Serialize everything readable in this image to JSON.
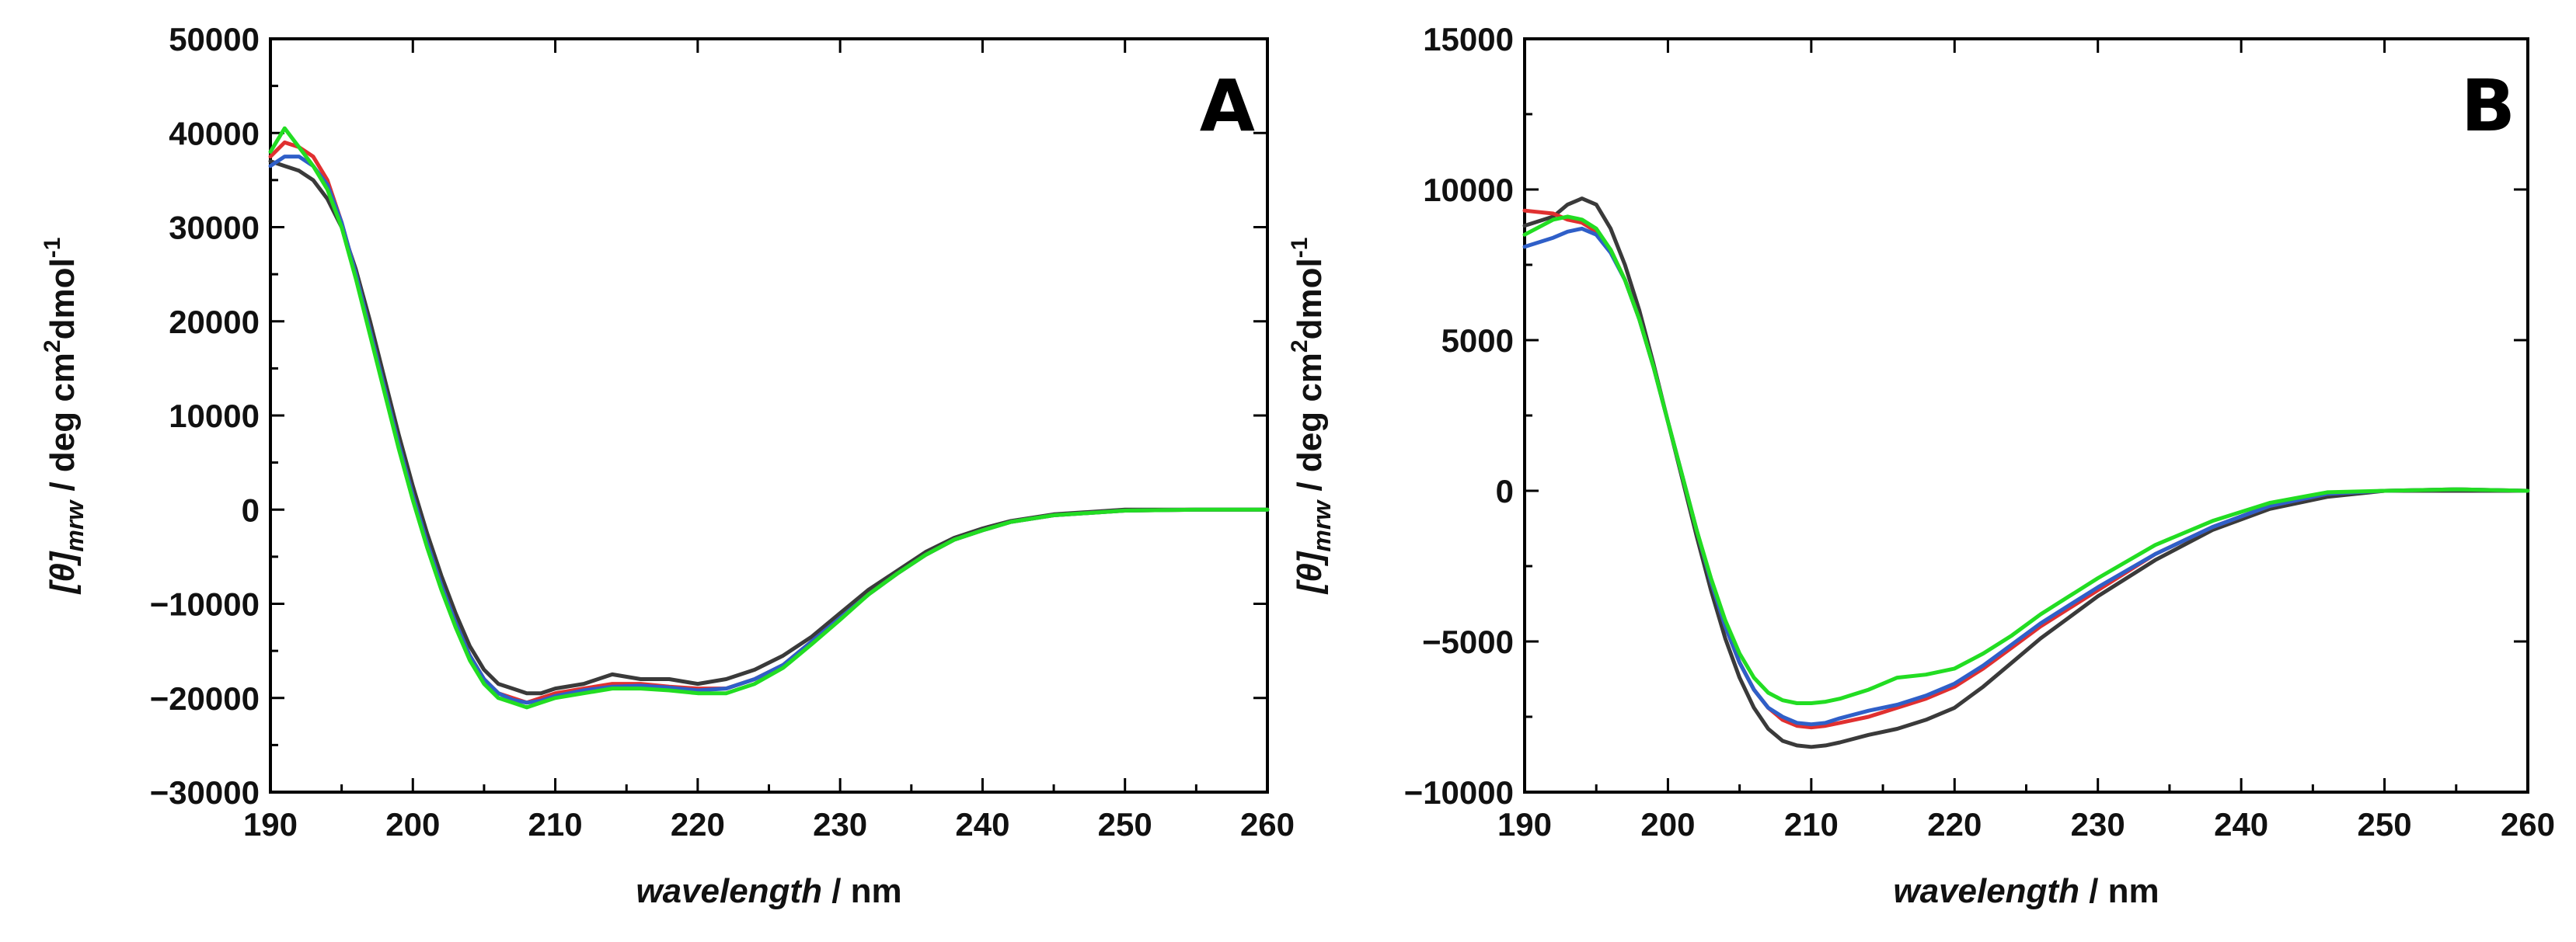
{
  "chart_data": [
    {
      "type": "line",
      "panel_label": "A",
      "xlabel_var": "wavelength",
      "xlabel_unit": " / nm",
      "ylabel_symbol": "[θ]",
      "ylabel_sub": "mrw",
      "ylabel_unit": " / deg cm",
      "ylabel_sup1": "2",
      "ylabel_unit2": "dmol",
      "ylabel_sup2": "-1",
      "xlim": [
        190,
        260
      ],
      "ylim": [
        -30000,
        50000
      ],
      "x_ticks": [
        "190",
        "200",
        "210",
        "220",
        "230",
        "240",
        "250",
        "260"
      ],
      "y_ticks": [
        "50000",
        "40000",
        "30000",
        "20000",
        "10000",
        "0",
        "−10000",
        "−20000",
        "−30000"
      ],
      "series": [
        {
          "name": "black",
          "color": "#3a3a3a",
          "x": [
            190,
            191,
            192,
            193,
            194,
            195,
            196,
            197,
            198,
            199,
            200,
            201,
            202,
            203,
            204,
            205,
            206,
            207,
            208,
            209,
            210,
            212,
            214,
            216,
            218,
            220,
            222,
            224,
            226,
            228,
            230,
            232,
            234,
            236,
            238,
            240,
            242,
            245,
            250,
            255,
            260
          ],
          "y": [
            37000,
            36500,
            36000,
            35000,
            33000,
            30000,
            25500,
            20000,
            14000,
            8000,
            2500,
            -2500,
            -7000,
            -11000,
            -14500,
            -17000,
            -18500,
            -19000,
            -19500,
            -19500,
            -19000,
            -18500,
            -17500,
            -18000,
            -18000,
            -18500,
            -18000,
            -17000,
            -15500,
            -13500,
            -11000,
            -8500,
            -6500,
            -4500,
            -3000,
            -2000,
            -1200,
            -500,
            0,
            0,
            0
          ]
        },
        {
          "name": "red",
          "color": "#e03030",
          "x": [
            190,
            191,
            192,
            193,
            194,
            195,
            196,
            197,
            198,
            199,
            200,
            201,
            202,
            203,
            204,
            205,
            206,
            207,
            208,
            209,
            210,
            212,
            214,
            216,
            218,
            220,
            222,
            224,
            226,
            228,
            230,
            232,
            234,
            236,
            238,
            240,
            242,
            245,
            250,
            255,
            260
          ],
          "y": [
            37500,
            39000,
            38500,
            37500,
            35000,
            30500,
            25000,
            19000,
            13000,
            7000,
            1500,
            -3500,
            -8000,
            -12000,
            -15500,
            -18000,
            -19500,
            -20000,
            -20500,
            -20000,
            -19500,
            -19000,
            -18500,
            -18500,
            -18800,
            -19000,
            -19000,
            -18000,
            -16500,
            -14000,
            -11500,
            -9000,
            -6800,
            -4800,
            -3200,
            -2200,
            -1300,
            -600,
            -100,
            0,
            0
          ]
        },
        {
          "name": "blue",
          "color": "#2f5fc8",
          "x": [
            190,
            191,
            192,
            193,
            194,
            195,
            196,
            197,
            198,
            199,
            200,
            201,
            202,
            203,
            204,
            205,
            206,
            207,
            208,
            209,
            210,
            212,
            214,
            216,
            218,
            220,
            222,
            224,
            226,
            228,
            230,
            232,
            234,
            236,
            238,
            240,
            242,
            245,
            250,
            255,
            260
          ],
          "y": [
            36500,
            37500,
            37500,
            36500,
            34500,
            30500,
            25000,
            19000,
            13000,
            7000,
            1500,
            -3500,
            -8000,
            -12000,
            -15500,
            -18000,
            -19500,
            -20200,
            -20500,
            -20300,
            -19800,
            -19200,
            -18800,
            -18700,
            -18900,
            -19200,
            -19000,
            -18000,
            -16500,
            -14000,
            -11500,
            -9000,
            -6800,
            -4800,
            -3200,
            -2200,
            -1300,
            -600,
            -100,
            0,
            0
          ]
        },
        {
          "name": "green",
          "color": "#22dd22",
          "x": [
            190,
            191,
            192,
            193,
            194,
            195,
            196,
            197,
            198,
            199,
            200,
            201,
            202,
            203,
            204,
            205,
            206,
            207,
            208,
            209,
            210,
            212,
            214,
            216,
            218,
            220,
            222,
            224,
            226,
            228,
            230,
            232,
            234,
            236,
            238,
            240,
            242,
            245,
            250,
            255,
            260
          ],
          "y": [
            38000,
            40500,
            38500,
            36500,
            34000,
            30000,
            24500,
            18500,
            12500,
            6500,
            1000,
            -4000,
            -8500,
            -12500,
            -16000,
            -18500,
            -20000,
            -20500,
            -21000,
            -20500,
            -20000,
            -19500,
            -19000,
            -19000,
            -19200,
            -19500,
            -19500,
            -18500,
            -16800,
            -14300,
            -11700,
            -9000,
            -6800,
            -4800,
            -3200,
            -2200,
            -1300,
            -600,
            -100,
            0,
            0
          ]
        }
      ]
    },
    {
      "type": "line",
      "panel_label": "B",
      "xlabel_var": "wavelength",
      "xlabel_unit": " / nm",
      "ylabel_symbol": "[θ]",
      "ylabel_sub": "mrw",
      "ylabel_unit": " / deg cm",
      "ylabel_sup1": "2",
      "ylabel_unit2": "dmol",
      "ylabel_sup2": "-1",
      "xlim": [
        190,
        260
      ],
      "ylim": [
        -10000,
        15000
      ],
      "x_ticks": [
        "190",
        "200",
        "210",
        "220",
        "230",
        "240",
        "250",
        "260"
      ],
      "y_ticks": [
        "15000",
        "10000",
        "5000",
        "0",
        "−5000",
        "−10000"
      ],
      "series": [
        {
          "name": "black",
          "color": "#3a3a3a",
          "x": [
            190,
            192,
            193,
            194,
            195,
            196,
            197,
            198,
            199,
            200,
            201,
            202,
            203,
            204,
            205,
            206,
            207,
            208,
            209,
            210,
            211,
            212,
            214,
            216,
            218,
            220,
            222,
            224,
            226,
            228,
            230,
            234,
            238,
            242,
            246,
            250,
            255,
            260
          ],
          "y": [
            8800,
            9100,
            9500,
            9700,
            9500,
            8700,
            7500,
            6000,
            4200,
            2300,
            400,
            -1500,
            -3300,
            -4900,
            -6200,
            -7200,
            -7900,
            -8300,
            -8450,
            -8500,
            -8450,
            -8350,
            -8100,
            -7900,
            -7600,
            -7200,
            -6500,
            -5700,
            -4900,
            -4200,
            -3500,
            -2300,
            -1300,
            -600,
            -200,
            0,
            0,
            0
          ]
        },
        {
          "name": "red",
          "color": "#e03030",
          "x": [
            190,
            192,
            193,
            194,
            195,
            196,
            197,
            198,
            199,
            200,
            201,
            202,
            203,
            204,
            205,
            206,
            207,
            208,
            209,
            210,
            211,
            212,
            214,
            216,
            218,
            220,
            222,
            224,
            226,
            228,
            230,
            234,
            238,
            242,
            246,
            250,
            255,
            260
          ],
          "y": [
            9300,
            9200,
            9000,
            8900,
            8600,
            8000,
            7000,
            5700,
            4100,
            2300,
            500,
            -1300,
            -3000,
            -4500,
            -5700,
            -6600,
            -7200,
            -7600,
            -7800,
            -7850,
            -7800,
            -7700,
            -7500,
            -7200,
            -6900,
            -6500,
            -5900,
            -5200,
            -4500,
            -3900,
            -3300,
            -2100,
            -1200,
            -500,
            -100,
            0,
            50,
            0
          ]
        },
        {
          "name": "blue",
          "color": "#2f5fc8",
          "x": [
            190,
            192,
            193,
            194,
            195,
            196,
            197,
            198,
            199,
            200,
            201,
            202,
            203,
            204,
            205,
            206,
            207,
            208,
            209,
            210,
            211,
            212,
            214,
            216,
            218,
            220,
            222,
            224,
            226,
            228,
            230,
            234,
            238,
            242,
            246,
            250,
            255,
            260
          ],
          "y": [
            8100,
            8400,
            8600,
            8700,
            8500,
            7900,
            7000,
            5700,
            4100,
            2300,
            500,
            -1300,
            -3000,
            -4500,
            -5700,
            -6600,
            -7200,
            -7500,
            -7700,
            -7750,
            -7700,
            -7550,
            -7300,
            -7100,
            -6800,
            -6400,
            -5800,
            -5100,
            -4400,
            -3800,
            -3200,
            -2100,
            -1200,
            -500,
            -100,
            0,
            50,
            0
          ]
        },
        {
          "name": "green",
          "color": "#22dd22",
          "x": [
            190,
            192,
            193,
            194,
            195,
            196,
            197,
            198,
            199,
            200,
            201,
            202,
            203,
            204,
            205,
            206,
            207,
            208,
            209,
            210,
            211,
            212,
            214,
            216,
            218,
            220,
            222,
            224,
            226,
            228,
            230,
            234,
            238,
            242,
            246,
            250,
            255,
            260
          ],
          "y": [
            8500,
            9000,
            9100,
            9000,
            8700,
            8000,
            7000,
            5700,
            4100,
            2300,
            500,
            -1300,
            -2900,
            -4300,
            -5400,
            -6200,
            -6700,
            -6950,
            -7050,
            -7050,
            -7000,
            -6900,
            -6600,
            -6200,
            -6100,
            -5900,
            -5400,
            -4800,
            -4100,
            -3500,
            -2900,
            -1800,
            -1000,
            -400,
            -50,
            0,
            50,
            0
          ]
        }
      ]
    }
  ]
}
